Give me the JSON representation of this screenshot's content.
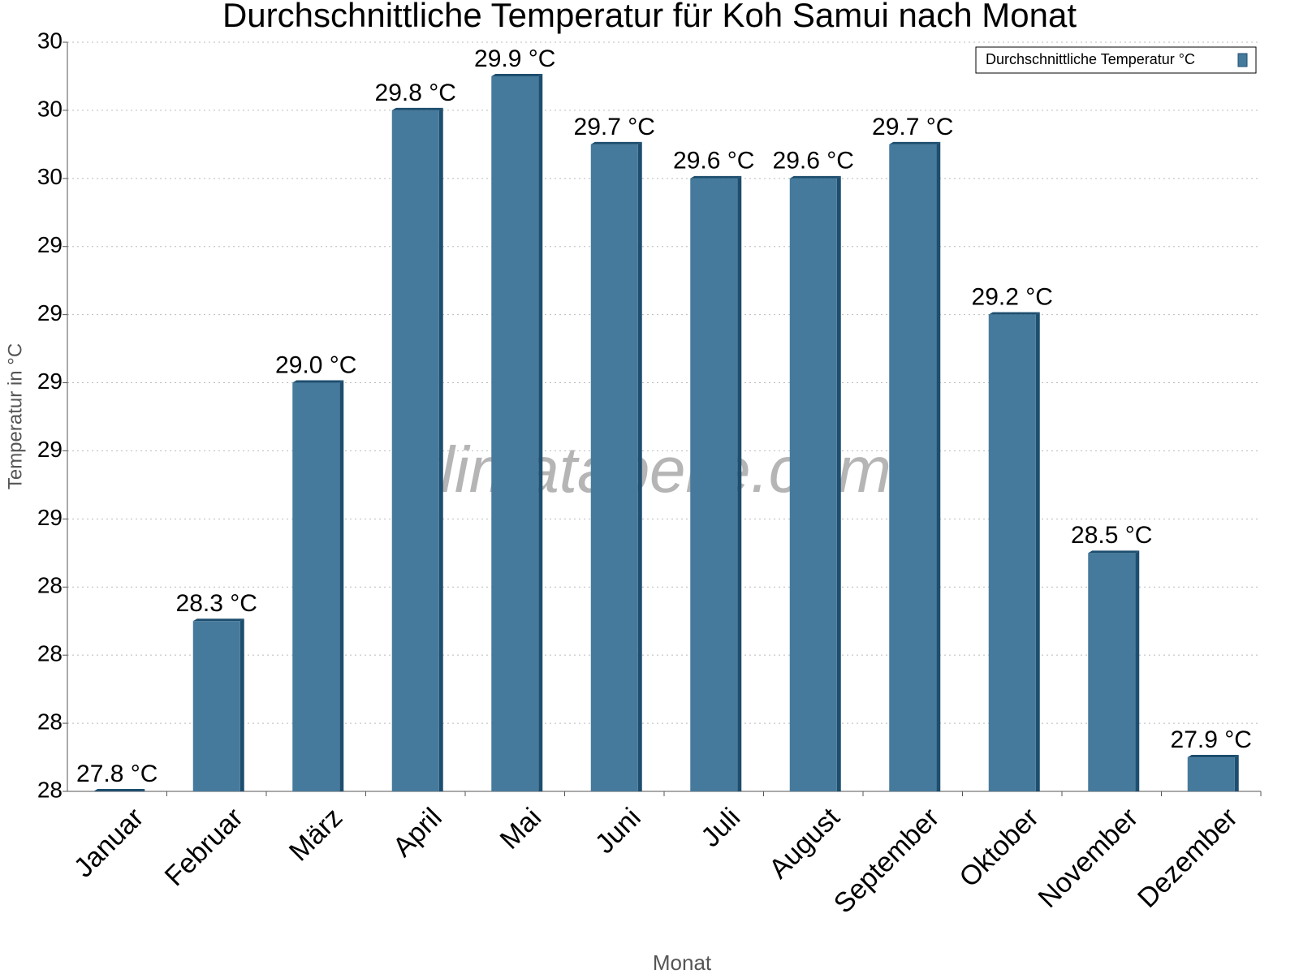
{
  "chart_data": {
    "type": "bar",
    "title": "Durchschnittliche Temperatur für Koh Samui nach Monat",
    "x_label": "Monat",
    "y_label": "Temperatur in °C",
    "watermark": "klimatabelle.com",
    "categories": [
      "Januar",
      "Februar",
      "März",
      "April",
      "Mai",
      "Juni",
      "Juli",
      "August",
      "September",
      "Oktober",
      "November",
      "Dezember"
    ],
    "series": [
      {
        "name": "Durchschnittliche Temperatur °C",
        "color": "#467a9c",
        "values": [
          27.8,
          28.3,
          29.0,
          29.8,
          29.9,
          29.7,
          29.6,
          29.6,
          29.7,
          29.2,
          28.5,
          27.9
        ],
        "value_labels": [
          "27.8 °C",
          "28.3 °C",
          "29.0 °C",
          "29.8 °C",
          "29.9 °C",
          "29.7 °C",
          "29.6 °C",
          "29.6 °C",
          "29.7 °C",
          "29.2 °C",
          "28.5 °C",
          "27.9 °C"
        ]
      }
    ],
    "ylim": [
      27.8,
      30.0
    ],
    "yticks": [
      {
        "value": 27.8,
        "label": "28"
      },
      28,
      {
        "value": 28.2,
        "label": "28"
      },
      {
        "value": 28.4,
        "label": "28"
      },
      {
        "value": 28.6,
        "label": "29"
      },
      {
        "value": 28.8,
        "label": "29"
      },
      29,
      {
        "value": 29.2,
        "label": "29"
      },
      {
        "value": 29.4,
        "label": "29"
      },
      {
        "value": 29.6,
        "label": "30"
      },
      {
        "value": 29.8,
        "label": "30"
      },
      30
    ],
    "grid": true,
    "legend": "top-right"
  }
}
